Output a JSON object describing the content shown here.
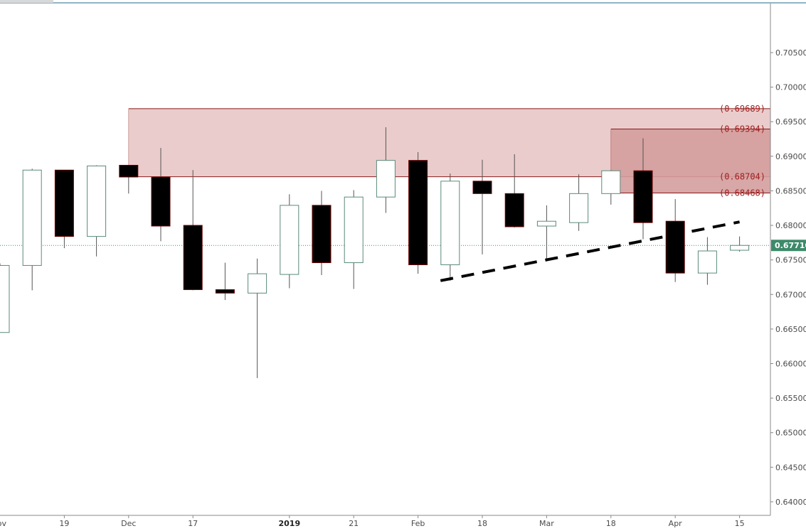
{
  "chart_data": {
    "type": "candlestick",
    "title": "",
    "ylim": [
      0.6385,
      0.71
    ],
    "y_ticks": [
      "0.70500",
      "0.70000",
      "0.69500",
      "0.69000",
      "0.68500",
      "0.68000",
      "0.67500",
      "0.67000",
      "0.66500",
      "0.66000",
      "0.65500",
      "0.65000",
      "0.64500",
      "0.64000"
    ],
    "x_ticks": [
      {
        "label": "ov",
        "index": -0.1
      },
      {
        "label": "19",
        "index": 2
      },
      {
        "label": "Dec",
        "index": 4
      },
      {
        "label": "17",
        "index": 6
      },
      {
        "label": "2019",
        "index": 9,
        "bold": true
      },
      {
        "label": "21",
        "index": 11
      },
      {
        "label": "Feb",
        "index": 13
      },
      {
        "label": "18",
        "index": 15
      },
      {
        "label": "Mar",
        "index": 17
      },
      {
        "label": "18",
        "index": 19
      },
      {
        "label": "Apr",
        "index": 21
      },
      {
        "label": "15",
        "index": 23
      }
    ],
    "candles": [
      {
        "o": 0.6645,
        "h": 0.6745,
        "l": 0.6645,
        "c": 0.6742
      },
      {
        "o": 0.6742,
        "h": 0.6882,
        "l": 0.6706,
        "c": 0.688
      },
      {
        "o": 0.688,
        "h": 0.688,
        "l": 0.6767,
        "c": 0.6784
      },
      {
        "o": 0.6784,
        "h": 0.6887,
        "l": 0.6755,
        "c": 0.6886
      },
      {
        "o": 0.6887,
        "h": 0.6887,
        "l": 0.6846,
        "c": 0.687
      },
      {
        "o": 0.687,
        "h": 0.6912,
        "l": 0.6777,
        "c": 0.6799
      },
      {
        "o": 0.68,
        "h": 0.688,
        "l": 0.6706,
        "c": 0.6707
      },
      {
        "o": 0.6707,
        "h": 0.6746,
        "l": 0.6692,
        "c": 0.6702
      },
      {
        "o": 0.6702,
        "h": 0.6752,
        "l": 0.6579,
        "c": 0.673
      },
      {
        "o": 0.6729,
        "h": 0.6845,
        "l": 0.6709,
        "c": 0.6829
      },
      {
        "o": 0.6829,
        "h": 0.685,
        "l": 0.6728,
        "c": 0.6746
      },
      {
        "o": 0.6746,
        "h": 0.6851,
        "l": 0.6708,
        "c": 0.6841
      },
      {
        "o": 0.6841,
        "h": 0.6942,
        "l": 0.6818,
        "c": 0.6894
      },
      {
        "o": 0.6894,
        "h": 0.6906,
        "l": 0.673,
        "c": 0.6743
      },
      {
        "o": 0.6743,
        "h": 0.6875,
        "l": 0.672,
        "c": 0.6864
      },
      {
        "o": 0.6864,
        "h": 0.6895,
        "l": 0.6758,
        "c": 0.6846
      },
      {
        "o": 0.6846,
        "h": 0.6903,
        "l": 0.6797,
        "c": 0.6798
      },
      {
        "o": 0.6799,
        "h": 0.6829,
        "l": 0.6748,
        "c": 0.6806
      },
      {
        "o": 0.6804,
        "h": 0.6874,
        "l": 0.6792,
        "c": 0.6846
      },
      {
        "o": 0.6846,
        "h": 0.688,
        "l": 0.683,
        "c": 0.6879
      },
      {
        "o": 0.6879,
        "h": 0.6926,
        "l": 0.678,
        "c": 0.6804
      },
      {
        "o": 0.6806,
        "h": 0.6838,
        "l": 0.6718,
        "c": 0.6731
      },
      {
        "o": 0.6731,
        "h": 0.6783,
        "l": 0.6714,
        "c": 0.6763
      },
      {
        "o": 0.6764,
        "h": 0.6784,
        "l": 0.6762,
        "c": 0.6771
      }
    ],
    "zones": [
      {
        "top": 0.69689,
        "bottom": 0.68704,
        "start_index": 4,
        "top_label": "(0.69689)",
        "bottom_label": "(0.68704)",
        "fill": "#e8c6c6",
        "stroke": "#8b1a1a"
      },
      {
        "top": 0.69394,
        "bottom": 0.68468,
        "start_index": 19,
        "top_label": "(0.69394)",
        "bottom_label": "(0.68468)",
        "fill": "#d49d9d",
        "stroke": "#8b1a1a"
      }
    ],
    "trendline": {
      "points": [
        {
          "index": 13.7,
          "price": 0.672
        },
        {
          "index": 23.0,
          "price": 0.6805
        }
      ],
      "style": "dashed"
    },
    "current_price": {
      "value": 0.6771,
      "label": "0.67710"
    },
    "colors": {
      "bull_border": "#5a8a7a",
      "bear_fill": "#000000",
      "wick": "#555555",
      "axis_line": "#888888",
      "price_tag_bg": "#3d8a6a",
      "trend": "#000000",
      "top_line": "#1f6a8a"
    }
  }
}
